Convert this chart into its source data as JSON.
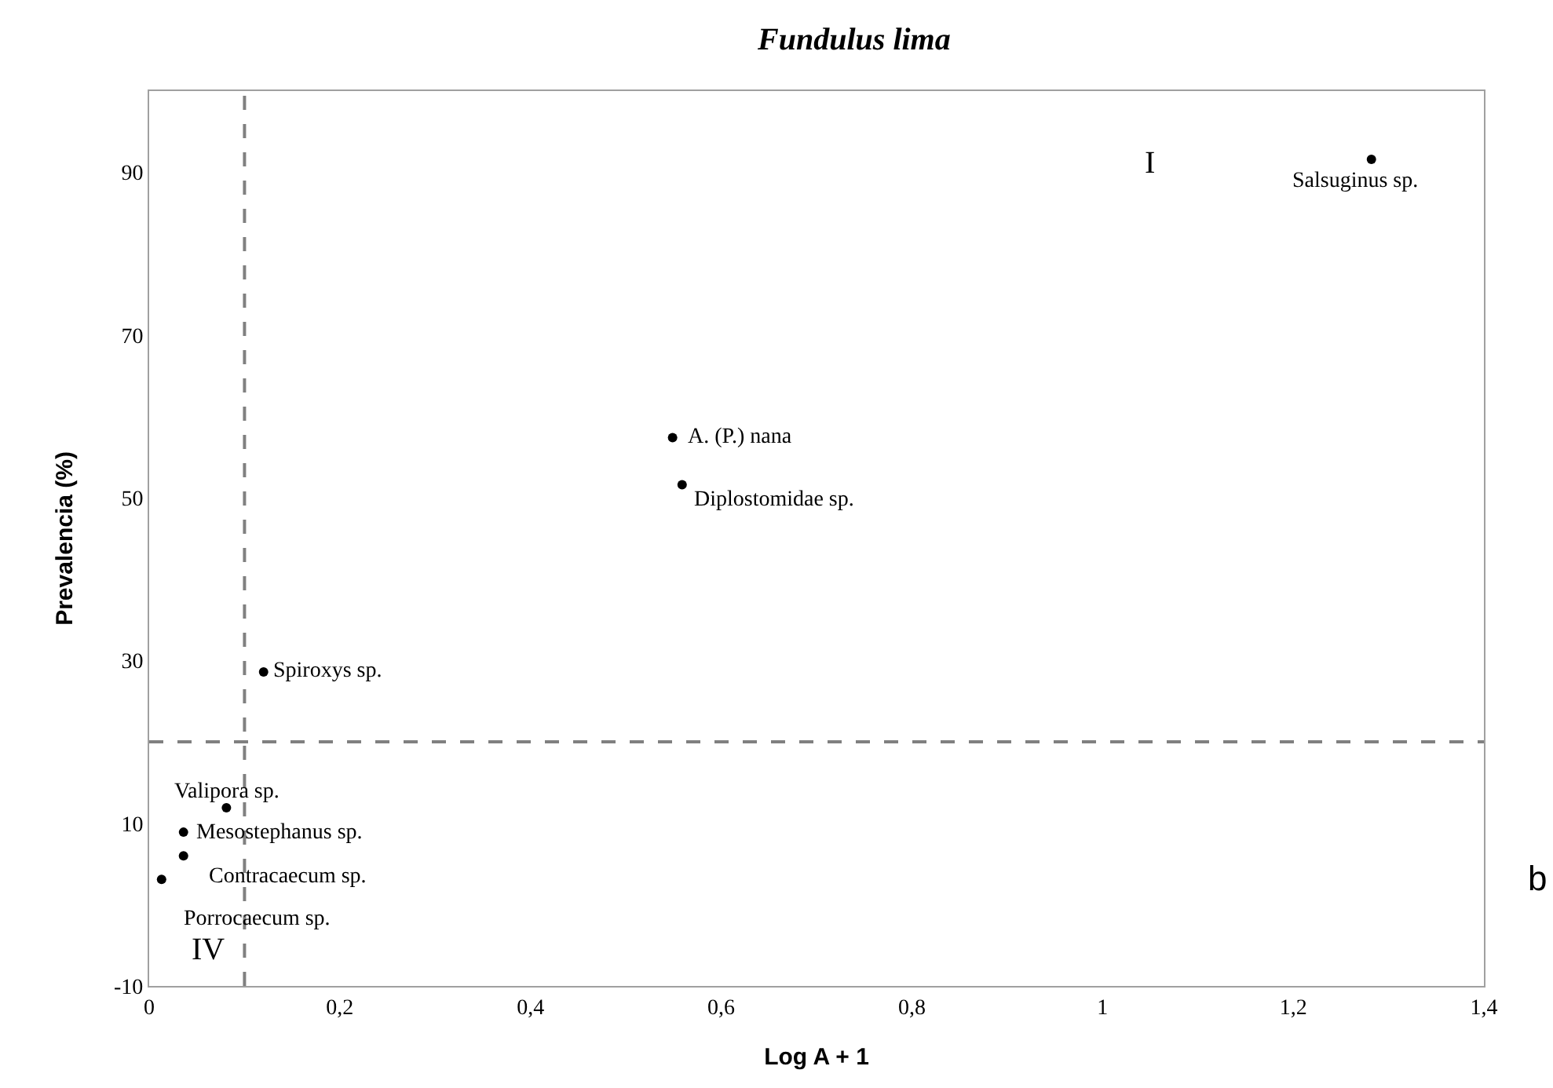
{
  "chart_data": {
    "type": "scatter",
    "title": "Fundulus lima",
    "xlabel": "Log A + 1",
    "ylabel": "Prevalencia (%)",
    "x": [
      1.282,
      0.549,
      0.559,
      0.12,
      0.081,
      0.036,
      0.036,
      0.013
    ],
    "series": [
      {
        "color": "#000000",
        "values": [
          91.6,
          57.4,
          51.6,
          28.6,
          11.9,
          8.9,
          6.0,
          3.1
        ]
      }
    ],
    "marker": "circle",
    "xlim": [
      0,
      1.4
    ],
    "xticks": [
      0,
      {
        "value": 0.2,
        "label": "0,2"
      },
      {
        "value": 0.4,
        "label": "0,4"
      },
      {
        "value": 0.6,
        "label": "0,6"
      },
      {
        "value": 0.8,
        "label": "0,8"
      },
      1,
      {
        "value": 1.2,
        "label": "1,2"
      },
      {
        "value": 1.4,
        "label": "1,4"
      }
    ],
    "ylim": [
      -10,
      100
    ],
    "yticks": [
      -10,
      10,
      30,
      50,
      70,
      90
    ],
    "ref_lines": [
      {
        "axis": "x",
        "value": 0.1,
        "color": "#808080",
        "line_style": "dashed"
      },
      {
        "axis": "y",
        "value": 20,
        "color": "#808080",
        "line_style": "dashed"
      }
    ],
    "annotations": [
      {
        "text": "Salsuginus sp.",
        "x": 1.282,
        "y": 91.6
      },
      {
        "text": "A. (P.) nana",
        "x": 0.549,
        "y": 57.4
      },
      {
        "text": "Diplostomidae sp.",
        "x": 0.559,
        "y": 51.6
      },
      {
        "text": "Spiroxys sp.",
        "x": 0.12,
        "y": 28.6
      },
      {
        "text": "Valipora sp.",
        "x": 0.081,
        "y": 11.9
      },
      {
        "text": "Mesostephanus sp.",
        "x": 0.036,
        "y": 8.9
      },
      {
        "text": "Contracaecum sp.",
        "x": 0.036,
        "y": 6.0
      },
      {
        "text": "Porrocaecum sp.",
        "x": 0.013,
        "y": 3.1
      },
      "I",
      "IV",
      "b"
    ]
  }
}
